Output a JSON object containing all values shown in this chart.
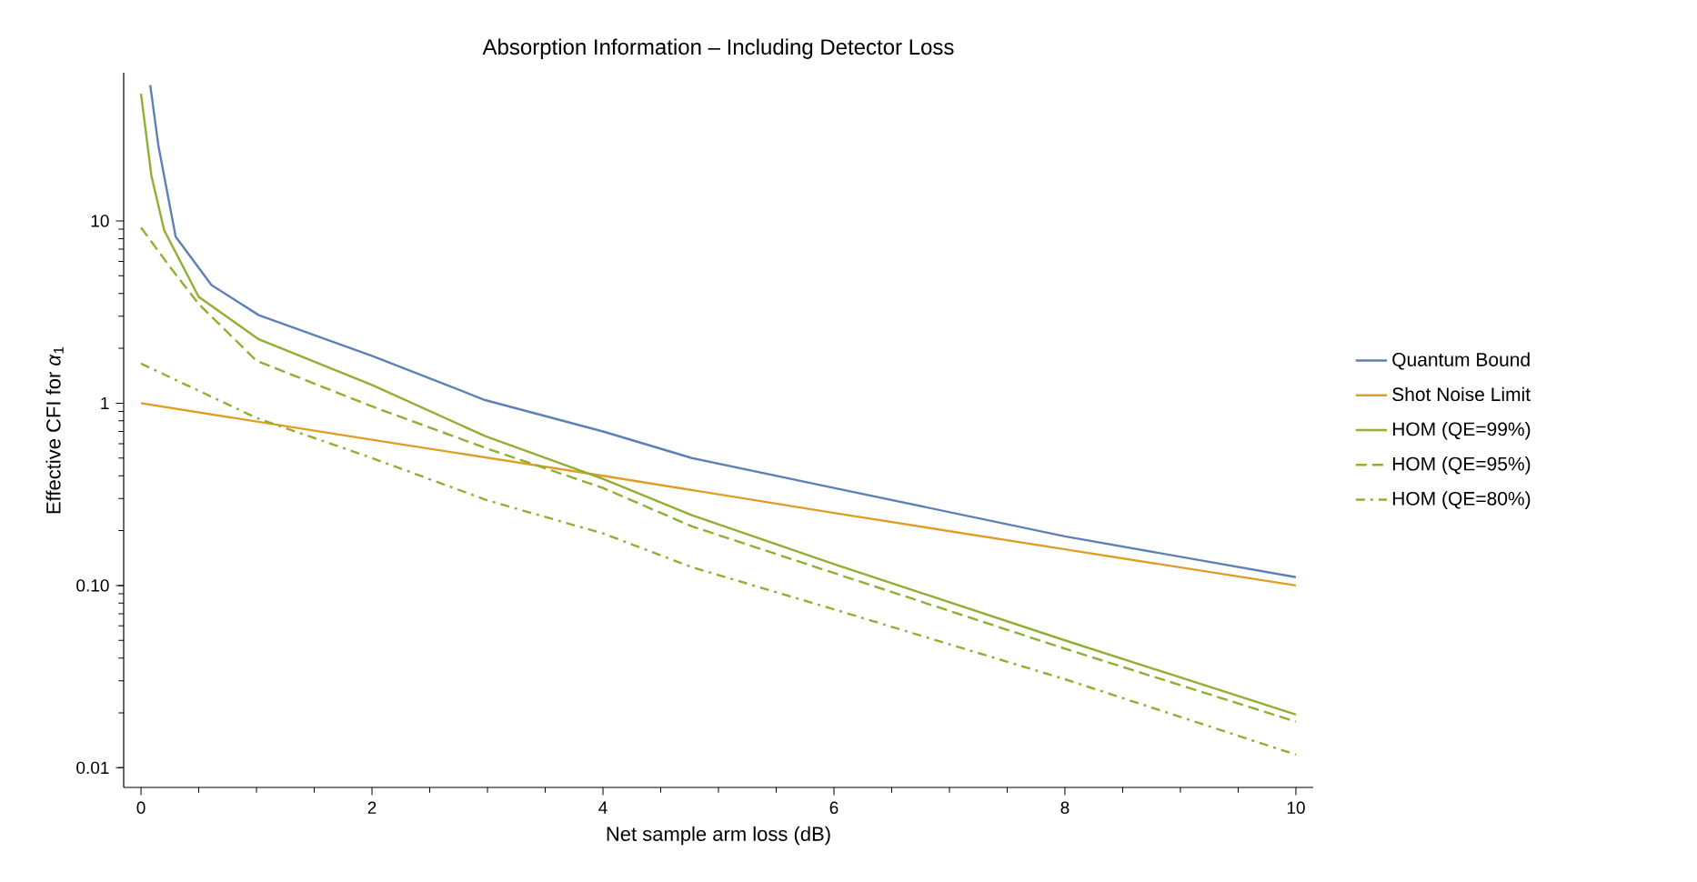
{
  "chart_data": {
    "type": "line",
    "title": "Absorption Information – Including Detector Loss",
    "xlabel": "Net sample arm loss (dB)",
    "ylabel": "Effective CFI for *α*$_{1}$",
    "log": "y",
    "xlim": [
      -0.15,
      10.15
    ],
    "ylim": [
      0.0078,
      65
    ],
    "xticks": [
      0,
      2,
      4,
      6,
      8,
      10
    ],
    "yticks": [
      {
        "value": 0.01,
        "label": "0.01"
      },
      {
        "value": 0.1,
        "label": "0.10"
      },
      {
        "value": 1,
        "label": "1"
      },
      {
        "value": 10,
        "label": "10"
      }
    ],
    "legend": "right",
    "grid": false,
    "marker": "none",
    "series": [
      {
        "name": "Quantum Bound",
        "color": "#5e81b5",
        "line_style": "solid",
        "x": [
          0.08,
          0.15,
          0.3,
          0.61,
          1.02,
          2,
          2.98,
          4,
          4.77,
          6,
          8,
          10
        ],
        "values": [
          55.6,
          26,
          8.2,
          4.45,
          3.04,
          1.82,
          1.04,
          0.7,
          0.5,
          0.343,
          0.186,
          0.111
        ]
      },
      {
        "name": "Shot Noise Limit",
        "color": "#e19c24",
        "line_style": "solid",
        "x": [
          0,
          2,
          4,
          6,
          8,
          10
        ],
        "values": [
          1,
          0.63,
          0.4,
          0.25,
          0.158,
          0.1
        ]
      },
      {
        "name": "HOM (QE=99%)",
        "color": "#8fb032",
        "line_style": "solid",
        "x": [
          0,
          0.09,
          0.2,
          0.5,
          1.02,
          2,
          2.98,
          4,
          4.77,
          6,
          8,
          10
        ],
        "values": [
          49.8,
          17.7,
          8.9,
          3.83,
          2.24,
          1.26,
          0.66,
          0.385,
          0.243,
          0.131,
          0.05,
          0.0196
        ]
      },
      {
        "name": "HOM (QE=95%)",
        "color": "#8fb032",
        "line_style": "dashed",
        "x": [
          0,
          0.25,
          0.5,
          1,
          2,
          3,
          4,
          4.77,
          6,
          8,
          10
        ],
        "values": [
          9.2,
          5.6,
          3.5,
          1.71,
          0.96,
          0.563,
          0.343,
          0.211,
          0.117,
          0.045,
          0.0179
        ]
      },
      {
        "name": "HOM (QE=80%)",
        "color": "#8fb032",
        "line_style": "dashdot",
        "x": [
          0,
          1,
          2,
          3,
          4,
          4.77,
          6,
          8,
          10
        ],
        "values": [
          1.65,
          0.83,
          0.5,
          0.293,
          0.193,
          0.126,
          0.074,
          0.0306,
          0.0118
        ]
      }
    ]
  }
}
